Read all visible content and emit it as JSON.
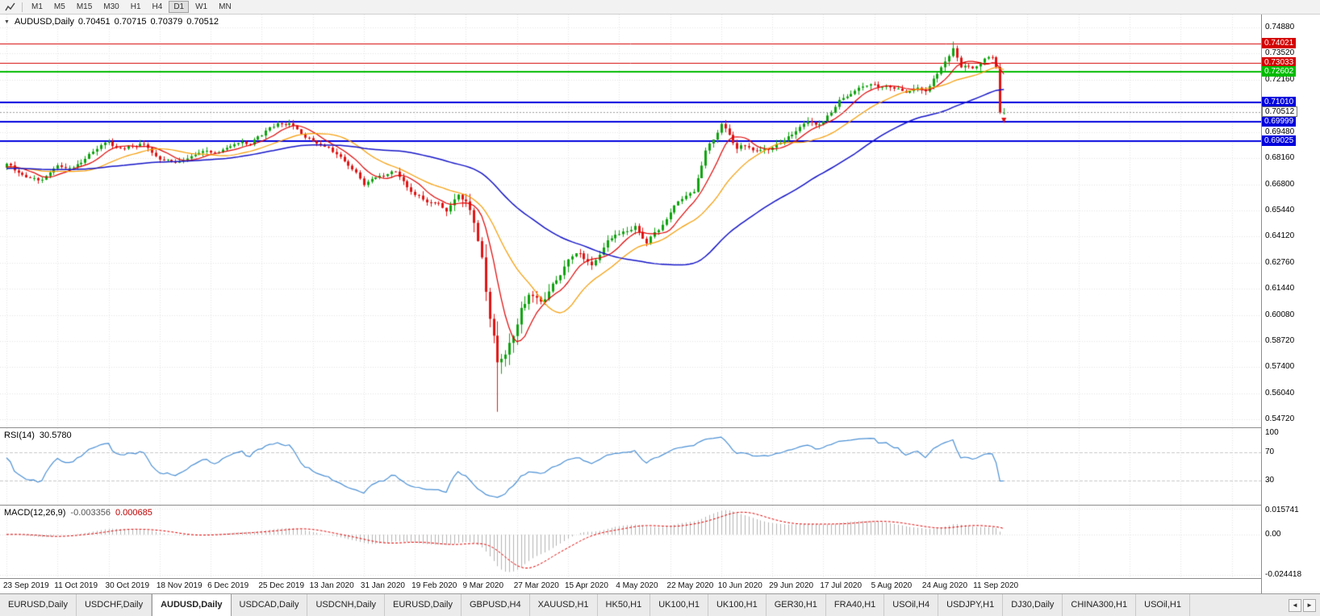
{
  "toolbar": {
    "timeframes": [
      "M1",
      "M5",
      "M15",
      "M30",
      "H1",
      "H4",
      "D1",
      "W1",
      "MN"
    ],
    "active_timeframe": "D1"
  },
  "main_chart": {
    "header": {
      "expander": "▼",
      "symbol": "AUDUSD,Daily",
      "open": "0.70451",
      "high": "0.70715",
      "low": "0.70379",
      "close": "0.70512"
    },
    "y_axis": {
      "labels": [
        "0.74880",
        "0.73520",
        "0.72160",
        "0.70800",
        "0.69480",
        "0.68160",
        "0.66800",
        "0.65440",
        "0.64120",
        "0.62760",
        "0.61440",
        "0.60080",
        "0.58720",
        "0.57400",
        "0.56040",
        "0.54720"
      ],
      "min": 0.543,
      "max": 0.7553
    },
    "hlines": [
      {
        "price": 0.74021,
        "label": "0.74021",
        "color": "#d40000",
        "width": 1
      },
      {
        "price": 0.73033,
        "label": "0.73033",
        "color": "#d40000",
        "width": 1
      },
      {
        "price": 0.72602,
        "label": "0.72602",
        "color": "#00bb00",
        "width": 2
      },
      {
        "price": 0.7101,
        "label": "0.71010",
        "color": "#0000dd",
        "width": 2
      },
      {
        "price": 0.69999,
        "label": "0.69999",
        "color": "#0000dd",
        "width": 2
      },
      {
        "price": 0.69025,
        "label": "0.69025",
        "color": "#0000dd",
        "width": 2
      }
    ],
    "bid_line": {
      "price": 0.70512,
      "label": "0.70512"
    },
    "x_labels": [
      "23 Sep 2019",
      "11 Oct 2019",
      "30 Oct 2019",
      "18 Nov 2019",
      "6 Dec 2019",
      "25 Dec 2019",
      "13 Jan 2020",
      "31 Jan 2020",
      "19 Feb 2020",
      "9 Mar 2020",
      "27 Mar 2020",
      "15 Apr 2020",
      "4 May 2020",
      "22 May 2020",
      "10 Jun 2020",
      "29 Jun 2020",
      "17 Jul 2020",
      "5 Aug 2020",
      "24 Aug 2020",
      "11 Sep 2020"
    ]
  },
  "rsi_panel": {
    "name": "RSI(14)",
    "value": "30.5780",
    "levels": [
      "100",
      "70",
      "30"
    ],
    "line_color": "#4a8fd4"
  },
  "macd_panel": {
    "name": "MACD(12,26,9)",
    "value_main": "-0.003356",
    "value_signal": "0.000685",
    "axis_labels": [
      "0.015741",
      "0.00",
      "-0.024418"
    ],
    "range_max": 0.015741,
    "range_min": -0.024418
  },
  "chart_data": {
    "type": "candlestick",
    "symbol": "AUDUSD",
    "timeframe": "Daily",
    "visible_candles": 255,
    "x_tick_interval_candles": 13,
    "up_color": "#0fa30f",
    "down_color": "#e01414",
    "close_anchors": [
      [
        0,
        0.678
      ],
      [
        5,
        0.6725
      ],
      [
        8,
        0.6702
      ],
      [
        13,
        0.6786
      ],
      [
        17,
        0.676
      ],
      [
        22,
        0.6845
      ],
      [
        26,
        0.6892
      ],
      [
        30,
        0.686
      ],
      [
        34,
        0.6888
      ],
      [
        39,
        0.6806
      ],
      [
        44,
        0.679
      ],
      [
        48,
        0.6838
      ],
      [
        52,
        0.6842
      ],
      [
        57,
        0.6872
      ],
      [
        61,
        0.689
      ],
      [
        65,
        0.6926
      ],
      [
        69,
        0.7
      ],
      [
        72,
        0.6988
      ],
      [
        78,
        0.6902
      ],
      [
        83,
        0.6852
      ],
      [
        88,
        0.676
      ],
      [
        91,
        0.6692
      ],
      [
        95,
        0.6722
      ],
      [
        99,
        0.6742
      ],
      [
        104,
        0.6616
      ],
      [
        108,
        0.6585
      ],
      [
        112,
        0.6552
      ],
      [
        115,
        0.6628
      ],
      [
        117,
        0.658
      ],
      [
        119,
        0.649
      ],
      [
        121,
        0.6296
      ],
      [
        123,
        0.5985
      ],
      [
        125,
        0.5772
      ],
      [
        127,
        0.5808
      ],
      [
        130,
        0.596
      ],
      [
        133,
        0.613
      ],
      [
        136,
        0.606
      ],
      [
        139,
        0.617
      ],
      [
        143,
        0.6295
      ],
      [
        146,
        0.633
      ],
      [
        149,
        0.627
      ],
      [
        153,
        0.6385
      ],
      [
        156,
        0.642
      ],
      [
        160,
        0.6455
      ],
      [
        163,
        0.639
      ],
      [
        166,
        0.6445
      ],
      [
        169,
        0.654
      ],
      [
        172,
        0.661
      ],
      [
        175,
        0.6645
      ],
      [
        178,
        0.6855
      ],
      [
        182,
        0.7
      ],
      [
        184,
        0.693
      ],
      [
        186,
        0.6858
      ],
      [
        189,
        0.6882
      ],
      [
        192,
        0.6852
      ],
      [
        195,
        0.6872
      ],
      [
        199,
        0.6922
      ],
      [
        203,
        0.6982
      ],
      [
        208,
        0.7005
      ],
      [
        212,
        0.7102
      ],
      [
        216,
        0.7152
      ],
      [
        221,
        0.7205
      ],
      [
        225,
        0.7178
      ],
      [
        229,
        0.7162
      ],
      [
        234,
        0.7162
      ],
      [
        238,
        0.7282
      ],
      [
        241,
        0.7368
      ],
      [
        243,
        0.7282
      ],
      [
        247,
        0.7288
      ],
      [
        249,
        0.7312
      ],
      [
        251,
        0.7332
      ],
      [
        252,
        0.7292
      ],
      [
        253,
        0.7062
      ],
      [
        254,
        0.70512
      ]
    ],
    "volatility_anchors": [
      [
        0,
        0.0036
      ],
      [
        100,
        0.0038
      ],
      [
        112,
        0.005
      ],
      [
        117,
        0.0085
      ],
      [
        121,
        0.012
      ],
      [
        126,
        0.014
      ],
      [
        130,
        0.011
      ],
      [
        136,
        0.008
      ],
      [
        142,
        0.006
      ],
      [
        150,
        0.005
      ],
      [
        160,
        0.0042
      ],
      [
        254,
        0.0042
      ]
    ],
    "crash_low": {
      "index": 125,
      "price": 0.551
    },
    "spike_high": {
      "index": 241,
      "price": 0.7414
    },
    "last_candle": {
      "open": 0.70451,
      "high": 0.70715,
      "low": 0.70379,
      "close": 0.70512
    },
    "moving_averages": [
      {
        "period": 8,
        "color": "#e00000"
      },
      {
        "period": 20,
        "color": "#f59a00"
      },
      {
        "period": 55,
        "color": "#1414c8"
      }
    ]
  },
  "tabs": {
    "items": [
      "EURUSD,Daily",
      "USDCHF,Daily",
      "AUDUSD,Daily",
      "USDCAD,Daily",
      "USDCNH,Daily",
      "EURUSD,Daily",
      "GBPUSD,H4",
      "XAUUSD,H1",
      "HK50,H1",
      "UK100,H1",
      "UK100,H1",
      "GER30,H1",
      "FRA40,H1",
      "USOil,H4",
      "USDJPY,H1",
      "DJ30,Daily",
      "CHINA300,H1",
      "USOil,H1"
    ],
    "active_index": 2,
    "scroll_left": "◄",
    "scroll_right": "►"
  }
}
